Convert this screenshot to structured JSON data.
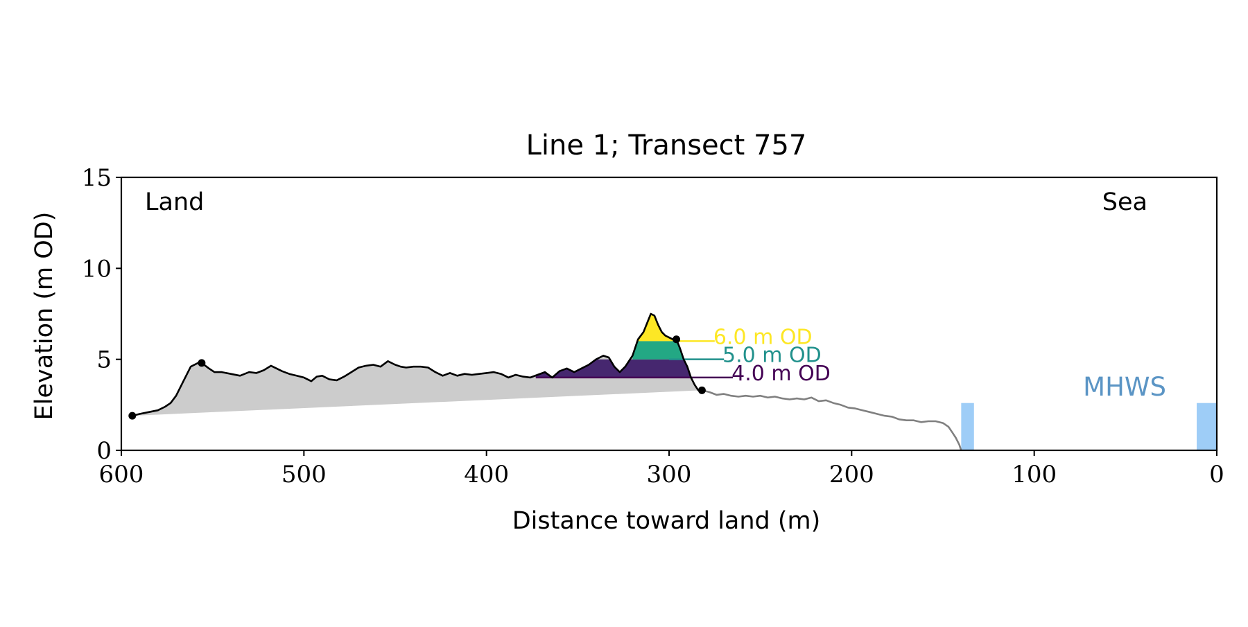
{
  "chart_data": {
    "type": "area",
    "title": "Line 1; Transect 757",
    "xlabel": "Distance toward land (m)",
    "ylabel": "Elevation (m OD)",
    "xlim": [
      600,
      0
    ],
    "ylim": [
      0,
      15
    ],
    "x_ticks": [
      600,
      500,
      400,
      300,
      200,
      100,
      0
    ],
    "y_ticks": [
      0,
      5,
      10,
      15
    ],
    "grid": false,
    "corner_labels": {
      "left": "Land",
      "right": "Sea"
    },
    "mhws": {
      "label": "MHWS",
      "level": 2.6,
      "color": "#9ecdf7",
      "label_color": "#5b95c5",
      "water_extents": [
        [
          140,
          133
        ],
        [
          11,
          0
        ]
      ]
    },
    "thresholds": [
      {
        "label": "6.0 m OD",
        "level": 6.0,
        "color": "#fde725",
        "line_x": [
          295,
          275
        ]
      },
      {
        "label": "5.0 m OD",
        "level": 5.0,
        "color": "#21918c",
        "line_x": [
          300,
          270
        ]
      },
      {
        "label": "4.0 m OD",
        "level": 4.0,
        "color": "#440154",
        "line_x": [
          373,
          265
        ]
      }
    ],
    "series": [
      {
        "role": "land-profile",
        "color": "#000000",
        "x": [
          594,
          590,
          585,
          580,
          576,
          573,
          570,
          566,
          562,
          558,
          556,
          552,
          549,
          545,
          540,
          535,
          530,
          526,
          522,
          518,
          515,
          512,
          508,
          504,
          500,
          496,
          493,
          490,
          486,
          482,
          478,
          474,
          470,
          466,
          462,
          458,
          454,
          450,
          447,
          444,
          440,
          436,
          432,
          428,
          424,
          420,
          416,
          412,
          408,
          404,
          400,
          396,
          392,
          388,
          384,
          380,
          376,
          372,
          368,
          364,
          360,
          356,
          352,
          348,
          344,
          340,
          336,
          333,
          330,
          327,
          324,
          320,
          317,
          314,
          312,
          310,
          308,
          306,
          304,
          302,
          300,
          298,
          296,
          294,
          292,
          290,
          288,
          286,
          284,
          282
        ],
        "y": [
          1.9,
          2.0,
          2.1,
          2.2,
          2.4,
          2.6,
          3.0,
          3.8,
          4.6,
          4.8,
          4.8,
          4.5,
          4.3,
          4.3,
          4.2,
          4.1,
          4.3,
          4.25,
          4.4,
          4.65,
          4.5,
          4.35,
          4.2,
          4.1,
          4.0,
          3.8,
          4.05,
          4.1,
          3.9,
          3.85,
          4.05,
          4.3,
          4.55,
          4.65,
          4.7,
          4.6,
          4.9,
          4.7,
          4.6,
          4.55,
          4.6,
          4.6,
          4.55,
          4.3,
          4.1,
          4.25,
          4.1,
          4.2,
          4.15,
          4.2,
          4.25,
          4.3,
          4.2,
          4.0,
          4.15,
          4.05,
          4.0,
          4.15,
          4.3,
          4.0,
          4.35,
          4.5,
          4.3,
          4.5,
          4.7,
          5.0,
          5.2,
          5.1,
          4.6,
          4.3,
          4.6,
          5.2,
          6.1,
          6.5,
          7.0,
          7.5,
          7.4,
          6.9,
          6.5,
          6.3,
          6.2,
          6.1,
          6.1,
          5.6,
          5.0,
          4.6,
          4.0,
          3.6,
          3.3,
          3.3
        ]
      },
      {
        "role": "seaward-profile",
        "color": "#808080",
        "x": [
          282,
          278,
          274,
          270,
          266,
          262,
          258,
          254,
          250,
          246,
          242,
          238,
          234,
          230,
          226,
          222,
          218,
          214,
          210,
          206,
          202,
          198,
          194,
          190,
          186,
          182,
          178,
          174,
          170,
          166,
          162,
          158,
          154,
          150,
          147,
          145,
          143,
          141,
          140
        ],
        "y": [
          3.3,
          3.2,
          3.05,
          3.1,
          3.0,
          2.95,
          3.0,
          2.95,
          3.0,
          2.9,
          2.95,
          2.85,
          2.8,
          2.85,
          2.8,
          2.9,
          2.7,
          2.75,
          2.6,
          2.5,
          2.35,
          2.3,
          2.2,
          2.1,
          2.0,
          1.9,
          1.85,
          1.7,
          1.65,
          1.65,
          1.55,
          1.6,
          1.6,
          1.5,
          1.3,
          1.0,
          0.7,
          0.3,
          0.0
        ]
      }
    ],
    "base_line": {
      "from": [
        594,
        1.9
      ],
      "to": [
        282,
        3.3
      ],
      "fill": "#cccccc"
    },
    "markers": [
      {
        "x": 594,
        "y": 1.9
      },
      {
        "x": 556,
        "y": 4.8
      },
      {
        "x": 296,
        "y": 6.1
      },
      {
        "x": 282,
        "y": 3.3
      }
    ]
  }
}
